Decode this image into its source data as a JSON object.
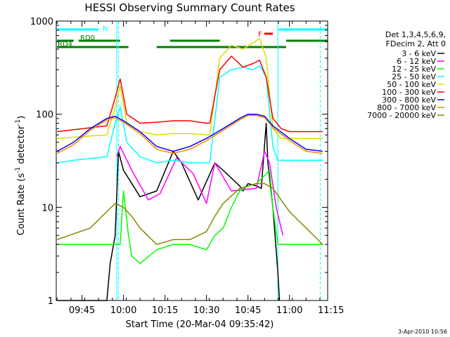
{
  "chart_data": {
    "type": "line",
    "title": "HESSI Observing Summary Count Rates",
    "xlabel": "Start Time (20-Mar-04 09:35:42)",
    "ylabel_main": "Count Rate (s",
    "ylabel_sup1": "-1",
    "ylabel_mid": " detector",
    "ylabel_sup2": "-1",
    "ylabel_end": ")",
    "y_scale": "log",
    "ylim": [
      1,
      1000
    ],
    "xlim": [
      9.595,
      11.23
    ],
    "ytick_labels": [
      "1",
      "10",
      "100",
      "1000"
    ],
    "ytick_values": [
      1,
      10,
      100,
      1000
    ],
    "xtick_labels": [
      "09:45",
      "10:00",
      "10:15",
      "10:30",
      "10:45",
      "11:00",
      "11:15"
    ],
    "xtick_values": [
      9.75,
      10.0,
      10.25,
      10.5,
      10.75,
      11.0,
      11.25
    ],
    "legend_header": [
      "Det 1,3,4,5,6,9,",
      "FDecim 2, Att 0"
    ],
    "date_stamp": "3-Apr-2010 10:56",
    "series": [
      {
        "name": "3 - 6 keV",
        "color": "#000000",
        "x": [
          9.6,
          9.9,
          9.92,
          9.95,
          9.97,
          10.0,
          10.1,
          10.2,
          10.3,
          10.35,
          10.45,
          10.55,
          10.6,
          10.7,
          10.72,
          10.75,
          10.8,
          10.83,
          10.86,
          10.87,
          10.9,
          10.93,
          10.94
        ],
        "y": [
          1,
          1,
          2.5,
          5,
          40,
          25,
          13,
          15,
          40,
          30,
          12,
          30,
          25,
          17,
          15,
          18,
          17,
          16,
          80,
          30,
          10,
          2,
          1
        ]
      },
      {
        "name": "6 - 12 keV",
        "color": "#ff00ff",
        "x": [
          9.96,
          9.98,
          10.05,
          10.15,
          10.22,
          10.32,
          10.42,
          10.5,
          10.55,
          10.65,
          10.8,
          10.85,
          10.88,
          10.92,
          10.96
        ],
        "y": [
          35,
          45,
          25,
          12,
          14,
          34,
          23,
          11,
          30,
          15,
          16,
          40,
          30,
          10,
          5
        ]
      },
      {
        "name": "12 - 25 keV",
        "color": "#00ff00",
        "x": [
          9.6,
          9.98,
          10.0,
          10.03,
          10.05,
          10.1,
          10.2,
          10.3,
          10.4,
          10.5,
          10.55,
          10.6,
          10.65,
          10.7,
          10.75,
          10.8,
          10.85,
          10.88,
          10.9,
          10.93,
          11.2
        ],
        "y": [
          4,
          4,
          15,
          5,
          3,
          2.5,
          3.5,
          4,
          4,
          3.5,
          5,
          6,
          10,
          15,
          17,
          18,
          22,
          25,
          10,
          4,
          4
        ]
      },
      {
        "name": "25 - 50 keV",
        "color": "#00ffff",
        "x": [
          9.6,
          9.7,
          9.9,
          9.95,
          9.98,
          10.02,
          10.1,
          10.2,
          10.3,
          10.4,
          10.5,
          10.52,
          10.58,
          10.65,
          10.72,
          10.78,
          10.82,
          10.86,
          10.9,
          10.93,
          11.0,
          11.2
        ],
        "y": [
          30,
          32,
          35,
          80,
          120,
          50,
          35,
          30,
          32,
          30,
          30,
          30,
          250,
          300,
          320,
          300,
          330,
          250,
          45,
          32,
          32,
          32
        ]
      },
      {
        "name": "50 - 100 keV",
        "color": "#dddd00",
        "x": [
          9.6,
          9.9,
          9.95,
          9.98,
          10.02,
          10.1,
          10.2,
          10.3,
          10.4,
          10.5,
          10.52,
          10.58,
          10.65,
          10.72,
          10.78,
          10.82,
          10.86,
          10.9,
          10.95,
          11.0,
          11.2
        ],
        "y": [
          55,
          60,
          120,
          200,
          80,
          65,
          60,
          62,
          62,
          60,
          60,
          400,
          550,
          500,
          580,
          650,
          400,
          70,
          55,
          55,
          55
        ]
      },
      {
        "name": "100 - 300 keV",
        "color": "#ff0000",
        "x": [
          9.6,
          9.9,
          9.95,
          9.98,
          10.02,
          10.1,
          10.2,
          10.3,
          10.4,
          10.5,
          10.52,
          10.58,
          10.65,
          10.72,
          10.78,
          10.82,
          10.86,
          10.9,
          10.95,
          11.0,
          11.2
        ],
        "y": [
          65,
          75,
          150,
          240,
          100,
          80,
          82,
          85,
          85,
          80,
          80,
          300,
          420,
          320,
          350,
          380,
          250,
          90,
          70,
          65,
          65
        ]
      },
      {
        "name": "300 - 800 keV",
        "color": "#0000ff",
        "x": [
          9.6,
          9.7,
          9.8,
          9.9,
          9.95,
          10.0,
          10.1,
          10.2,
          10.3,
          10.4,
          10.5,
          10.6,
          10.7,
          10.75,
          10.8,
          10.85,
          10.9,
          11.0,
          11.1,
          11.2
        ],
        "y": [
          40,
          50,
          70,
          90,
          95,
          85,
          65,
          45,
          40,
          45,
          55,
          70,
          90,
          100,
          100,
          95,
          75,
          55,
          42,
          40
        ]
      },
      {
        "name": "800 - 7000 keV",
        "color": "#ff8800",
        "x": [
          9.6,
          9.7,
          9.8,
          9.9,
          9.95,
          10.0,
          10.1,
          10.2,
          10.3,
          10.4,
          10.5,
          10.6,
          10.7,
          10.75,
          10.8,
          10.85,
          10.9,
          11.0,
          11.1,
          11.2
        ],
        "y": [
          38,
          47,
          67,
          87,
          92,
          82,
          62,
          42,
          38,
          42,
          52,
          67,
          87,
          97,
          97,
          92,
          72,
          52,
          40,
          38
        ]
      },
      {
        "name": "7000 - 20000 keV",
        "color": "#888800",
        "x": [
          9.6,
          9.8,
          9.9,
          9.95,
          10.0,
          10.05,
          10.1,
          10.2,
          10.3,
          10.4,
          10.5,
          10.55,
          10.6,
          10.7,
          10.8,
          10.85,
          10.9,
          10.95,
          11.0,
          11.1,
          11.2
        ],
        "y": [
          4.5,
          6,
          9,
          11,
          10,
          8,
          6,
          4,
          4.5,
          4.5,
          5.5,
          8,
          11,
          16,
          18,
          18,
          16,
          12,
          9,
          6,
          4
        ]
      }
    ],
    "flag_bars": [
      {
        "label": "",
        "color": "#00ffff",
        "segments": [
          [
            9.6,
            9.85
          ],
          [
            10.935,
            11.23
          ]
        ]
      },
      {
        "label": "RD0",
        "color": "#008000",
        "segments": [
          [
            9.6,
            9.7
          ],
          [
            9.73,
            9.98
          ],
          [
            10.28,
            10.58
          ],
          [
            10.98,
            11.23
          ]
        ]
      },
      {
        "label": "RD4",
        "color": "#008000",
        "segments": [
          [
            9.6,
            10.03
          ],
          [
            10.2,
            10.58
          ],
          [
            10.58,
            10.98
          ]
        ]
      }
    ],
    "flag_labels": {
      "n": "N",
      "f": "F"
    },
    "cyan_vlines_dashed": [
      9.97,
      11.185
    ],
    "cyan_vlines_solid": [
      9.96,
      10.93
    ],
    "grid": false,
    "legend_position": "right"
  }
}
